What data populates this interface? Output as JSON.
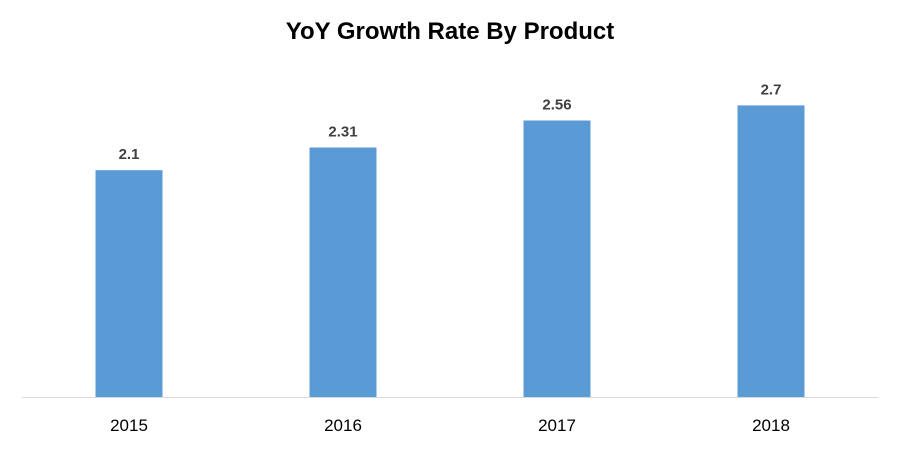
{
  "chart_data": {
    "type": "bar",
    "title": "YoY Growth Rate By Product",
    "categories": [
      "2015",
      "2016",
      "2017",
      "2018"
    ],
    "values": [
      2.1,
      2.31,
      2.56,
      2.7
    ],
    "data_labels": [
      "2.1",
      "2.31",
      "2.56",
      "2.7"
    ],
    "xlabel": "",
    "ylabel": "",
    "ylim": [
      0,
      3
    ],
    "grid": false,
    "legend": "none",
    "bar_color": "#5B9BD5",
    "axis_color": "#D9D9D9"
  }
}
